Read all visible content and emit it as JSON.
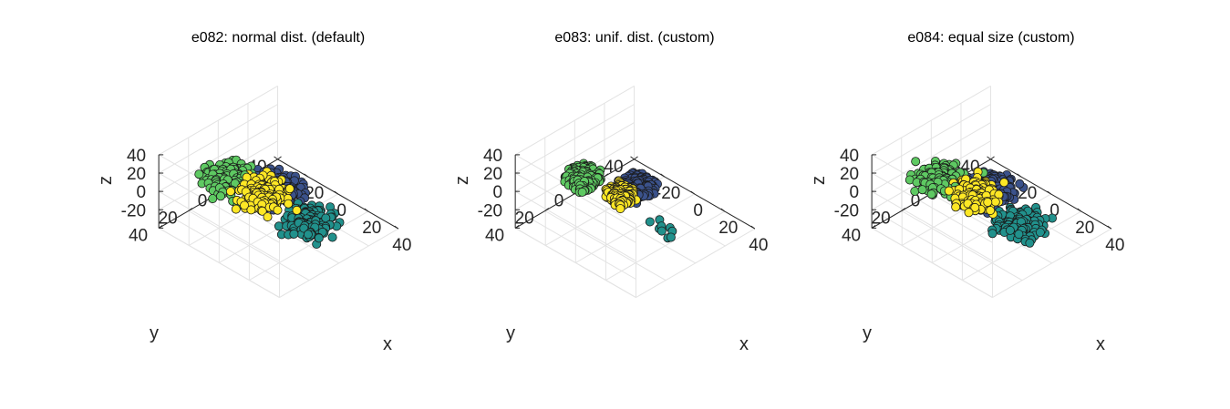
{
  "chart_data": [
    {
      "type": "scatter",
      "title": "e082: normal dist. (default)",
      "xlabel": "x",
      "ylabel": "y",
      "zlabel": "z",
      "xticks": [
        "-20",
        "0",
        "20",
        "40"
      ],
      "yticks": [
        "-40",
        "-20",
        "0",
        "20",
        "40"
      ],
      "zticks": [
        "-20",
        "0",
        "20",
        "40"
      ],
      "xlim": [
        -40,
        40
      ],
      "ylim": [
        -40,
        40
      ],
      "zlim": [
        -40,
        40
      ],
      "grid": true,
      "series": [
        {
          "color": "#3b528b",
          "center": [
            -10,
            -10,
            -15
          ],
          "spread": [
            5,
            5,
            5
          ],
          "dist": "normal",
          "count": 220
        },
        {
          "color": "#21918c",
          "center": [
            20,
            0,
            -15
          ],
          "spread": [
            5,
            5,
            5
          ],
          "dist": "normal",
          "count": 220
        },
        {
          "color": "#5ec962",
          "center": [
            -15,
            20,
            20
          ],
          "spread": [
            5,
            5,
            5
          ],
          "dist": "normal",
          "count": 220
        },
        {
          "color": "#fde725",
          "center": [
            10,
            20,
            25
          ],
          "spread": [
            5,
            5,
            5
          ],
          "dist": "normal",
          "count": 220
        }
      ]
    },
    {
      "type": "scatter",
      "title": "e083: unif. dist. (custom)",
      "xlabel": "x",
      "ylabel": "y",
      "zlabel": "z",
      "xticks": [
        "-20",
        "0",
        "20",
        "40"
      ],
      "yticks": [
        "-40",
        "-20",
        "0",
        "20",
        "40"
      ],
      "zticks": [
        "-20",
        "0",
        "20",
        "40"
      ],
      "xlim": [
        -40,
        40
      ],
      "ylim": [
        -40,
        40
      ],
      "zlim": [
        -40,
        40
      ],
      "grid": true,
      "series": [
        {
          "color": "#3b528b",
          "center": [
            -10,
            -12,
            -15
          ],
          "spread": [
            10,
            10,
            10
          ],
          "dist": "uniform",
          "count": 220
        },
        {
          "color": "#21918c",
          "center": [
            25,
            5,
            -10
          ],
          "spread": [
            12,
            6,
            6
          ],
          "dist": "uniform",
          "count": 9
        },
        {
          "color": "#5ec962",
          "center": [
            -15,
            20,
            20
          ],
          "spread": [
            10,
            10,
            10
          ],
          "dist": "uniform",
          "count": 220
        },
        {
          "color": "#fde725",
          "center": [
            10,
            20,
            25
          ],
          "spread": [
            8,
            8,
            8
          ],
          "dist": "uniform",
          "count": 220
        }
      ]
    },
    {
      "type": "scatter",
      "title": "e084: equal size (custom)",
      "xlabel": "x",
      "ylabel": "y",
      "zlabel": "z",
      "xticks": [
        "-20",
        "0",
        "20",
        "40"
      ],
      "yticks": [
        "-40",
        "-20",
        "0",
        "20",
        "40"
      ],
      "zticks": [
        "-20",
        "0",
        "20",
        "40"
      ],
      "xlim": [
        -40,
        40
      ],
      "ylim": [
        -40,
        40
      ],
      "zlim": [
        -40,
        40
      ],
      "grid": true,
      "series": [
        {
          "color": "#3b528b",
          "center": [
            -10,
            -10,
            -15
          ],
          "spread": [
            5,
            5,
            5
          ],
          "dist": "normal",
          "count": 220
        },
        {
          "color": "#21918c",
          "center": [
            20,
            0,
            -15
          ],
          "spread": [
            5,
            5,
            5
          ],
          "dist": "normal",
          "count": 220
        },
        {
          "color": "#5ec962",
          "center": [
            -15,
            20,
            20
          ],
          "spread": [
            5,
            5,
            5
          ],
          "dist": "normal",
          "count": 220
        },
        {
          "color": "#fde725",
          "center": [
            10,
            20,
            25
          ],
          "spread": [
            5,
            5,
            5
          ],
          "dist": "normal",
          "count": 220
        }
      ]
    }
  ]
}
